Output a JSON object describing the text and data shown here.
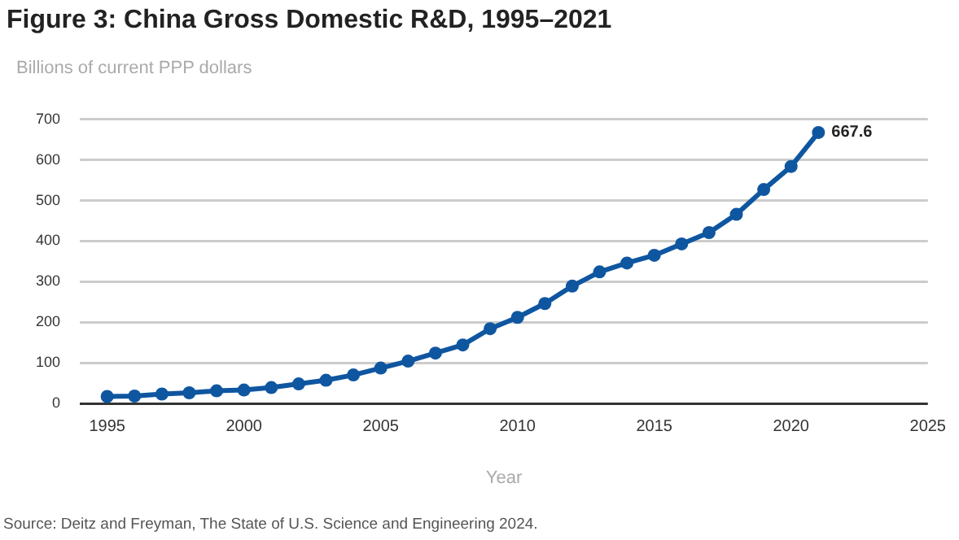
{
  "chart_data": {
    "type": "line",
    "title": "Figure 3: China Gross Domestic R&D, 1995–2021",
    "ylabel": "Billions of current PPP dollars",
    "xlabel": "Year",
    "x": [
      1995,
      1996,
      1997,
      1998,
      1999,
      2000,
      2001,
      2002,
      2003,
      2004,
      2005,
      2006,
      2007,
      2008,
      2009,
      2010,
      2011,
      2012,
      2013,
      2014,
      2015,
      2016,
      2017,
      2018,
      2019,
      2020,
      2021
    ],
    "series": [
      {
        "color": "#0f56a0",
        "values": [
          17,
          18,
          23,
          26,
          31,
          33,
          39,
          48,
          57,
          70,
          87,
          104,
          124,
          144,
          184,
          212,
          246,
          289,
          324,
          346,
          365,
          393,
          421,
          466,
          527,
          584,
          667.6
        ],
        "value_labels": [
          null,
          null,
          null,
          null,
          null,
          null,
          null,
          null,
          null,
          null,
          null,
          null,
          null,
          null,
          null,
          null,
          null,
          null,
          null,
          null,
          null,
          null,
          null,
          null,
          null,
          null,
          "667.6"
        ]
      }
    ],
    "xlim": [
      1994,
      2025
    ],
    "xticks": [
      1995,
      2000,
      2005,
      2010,
      2015,
      2020,
      2025
    ],
    "ylim": [
      0,
      700
    ],
    "yticks": [
      0,
      100,
      200,
      300,
      400,
      500,
      600,
      700
    ],
    "grid": "y",
    "legend": false,
    "marker": "circle",
    "line_style": "solid",
    "annotations": [
      "Source: Deitz and Freyman, The State of U.S. Science and Engineering 2024."
    ]
  }
}
